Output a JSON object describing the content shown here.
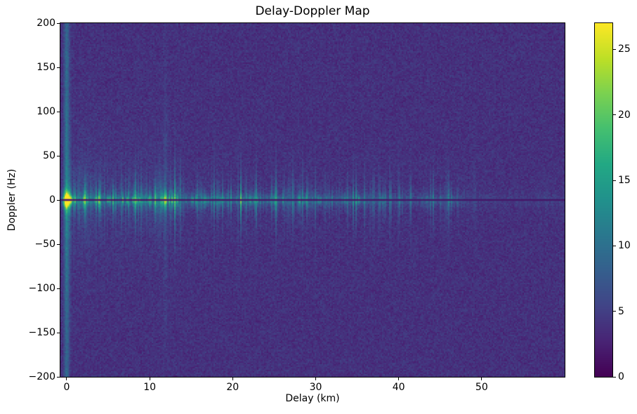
{
  "chart_data": {
    "type": "heatmap",
    "title": "Delay-Doppler Map",
    "xlabel": "Delay (km)",
    "ylabel": "Doppler (Hz)",
    "x_range": [
      -0.76,
      60.0
    ],
    "y_range": [
      -200,
      200
    ],
    "x_ticks": [
      {
        "v": 0,
        "label": "0"
      },
      {
        "v": 10,
        "label": "10"
      },
      {
        "v": 20,
        "label": "20"
      },
      {
        "v": 30,
        "label": "30"
      },
      {
        "v": 40,
        "label": "40"
      },
      {
        "v": 50,
        "label": "50"
      }
    ],
    "y_ticks": [
      {
        "v": 200,
        "label": "200"
      },
      {
        "v": 150,
        "label": "150"
      },
      {
        "v": 100,
        "label": "100"
      },
      {
        "v": 50,
        "label": "50"
      },
      {
        "v": 0,
        "label": "0"
      },
      {
        "v": -50,
        "label": "−50"
      },
      {
        "v": -100,
        "label": "−100"
      },
      {
        "v": -150,
        "label": "−150"
      },
      {
        "v": -200,
        "label": "−200"
      }
    ],
    "colorbar": {
      "vmin": 0,
      "vmax": 27,
      "ticks": [
        {
          "v": 0,
          "label": "0"
        },
        {
          "v": 5,
          "label": "5"
        },
        {
          "v": 10,
          "label": "10"
        },
        {
          "v": 15,
          "label": "15"
        },
        {
          "v": 20,
          "label": "20"
        },
        {
          "v": 25,
          "label": "25"
        }
      ]
    },
    "colormap": {
      "name": "viridis",
      "stops": [
        [
          0.0,
          "#440154"
        ],
        [
          0.1,
          "#482475"
        ],
        [
          0.2,
          "#414487"
        ],
        [
          0.3,
          "#355f8d"
        ],
        [
          0.4,
          "#2a788e"
        ],
        [
          0.5,
          "#21918c"
        ],
        [
          0.6,
          "#22a884"
        ],
        [
          0.7,
          "#44bf70"
        ],
        [
          0.8,
          "#7ad151"
        ],
        [
          0.9,
          "#bddf26"
        ],
        [
          1.0,
          "#fde725"
        ]
      ]
    },
    "features": {
      "zero_doppler_band": {
        "envelope": [
          [
            -0.76,
            0
          ],
          [
            -0.3,
            0.5
          ],
          [
            0,
            19
          ],
          [
            0.6,
            15
          ],
          [
            1.5,
            13.5
          ],
          [
            3,
            14
          ],
          [
            5,
            13.5
          ],
          [
            7,
            13.5
          ],
          [
            9,
            14.5
          ],
          [
            11,
            15
          ],
          [
            12.3,
            16
          ],
          [
            13.2,
            13.5
          ],
          [
            14.5,
            11
          ],
          [
            16,
            12
          ],
          [
            17.5,
            11
          ],
          [
            19,
            11.5
          ],
          [
            20.5,
            12
          ],
          [
            22,
            13
          ],
          [
            23.5,
            11
          ],
          [
            25,
            10.5
          ],
          [
            26.5,
            10
          ],
          [
            28,
            9.5
          ],
          [
            29.5,
            10
          ],
          [
            30.8,
            11
          ],
          [
            32.3,
            7.5
          ],
          [
            34,
            9.5
          ],
          [
            35.8,
            11
          ],
          [
            36.8,
            9
          ],
          [
            38,
            6.5
          ],
          [
            39.5,
            6
          ],
          [
            41,
            5.5
          ],
          [
            42.5,
            5
          ],
          [
            44,
            6
          ],
          [
            45.2,
            7
          ],
          [
            46.6,
            7.5
          ],
          [
            47.6,
            3
          ],
          [
            49,
            1.5
          ],
          [
            52,
            1
          ],
          [
            60,
            0.8
          ]
        ],
        "sigma_hz_base": 3.5,
        "sigma_hz_spread": 19,
        "spike_min": 0.45,
        "spike_gain": 1.05,
        "spike_pow": 2.2,
        "glow_frac": 0.22,
        "glow_sigma_hz": 45,
        "glow_decay_km": 10
      },
      "specular_point": {
        "delay_km": 0,
        "doppler_hz": 0,
        "amp": 26,
        "sigma_km": 0.45,
        "sigma_hz": 8
      },
      "zero_delay_stripe": {
        "delay_km": 0,
        "amp": 6.5,
        "sigma_km": 0.33,
        "base_frac": 0.75,
        "doppler_boost": 0.5,
        "boost_sigma_hz": 90
      },
      "secondary_stripe": {
        "delay_km": 11.9,
        "amp": 2.6,
        "sigma_km": 0.25,
        "decay_hz": 110
      },
      "zero_doppler_notch": {
        "value": 1.6,
        "thickness_px": 2.6
      },
      "residual_line_glow": {
        "amp": 1.1,
        "sigma_hz": 4
      }
    },
    "noise": {
      "base": 2.1,
      "amp": 3.4
    },
    "render_hints": {
      "seed": 1337,
      "grid_nx": 359,
      "grid_ny": 252
    }
  }
}
